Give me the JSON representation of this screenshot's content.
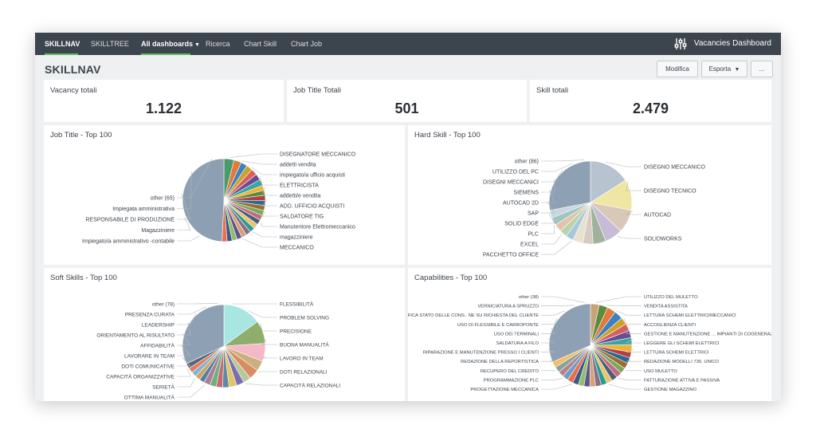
{
  "nav": {
    "items": [
      {
        "label": "SKILLNAV",
        "bold": true,
        "active": true
      },
      {
        "label": "SKILLTREE",
        "bold": false,
        "active": false
      },
      {
        "label": "All dashboards",
        "bold": true,
        "active": true,
        "caret": true
      },
      {
        "label": "Ricerca",
        "bold": false,
        "active": false
      },
      {
        "label": "Chart Skill",
        "bold": false,
        "active": false
      },
      {
        "label": "Chart Job",
        "bold": false,
        "active": false
      }
    ],
    "dashboard_title": "Vacancies Dashboard",
    "dashboard_icon": "sliders-icon",
    "accent_color": "#5cc05c",
    "bar_color": "#3c444d"
  },
  "page": {
    "title": "SKILLNAV",
    "buttons": {
      "edit": "Modifica",
      "export": "Esporta",
      "more": "..."
    }
  },
  "stats": [
    {
      "label": "Vacancy totali",
      "value": "1.122"
    },
    {
      "label": "Job Title Totali",
      "value": "501"
    },
    {
      "label": "Skill totali",
      "value": "2.479"
    }
  ],
  "chart_data": [
    {
      "type": "pie",
      "title": "Job Title - Top 100",
      "left_labels": [
        "other (65)",
        "Impiegata amministrativa",
        "RESPONSABILE DI PRODUZIONE",
        "Magazziniere",
        "Impiegato/a amministrativo -contabile"
      ],
      "right_labels": [
        "DISEGNATORE MECCANICO",
        "addetti vendita",
        "impiegato/a ufficio acquisti",
        "ELETTRICISTA",
        "addetti/e vendita",
        "ADD. UFFICIO ACQUISTI",
        "SALDATORE TIG",
        "Manutentore Elettromeccanico",
        "magazziniere",
        "MECCANICO"
      ],
      "slices": [
        {
          "value": 4.0,
          "color": "#4a9a6b"
        },
        {
          "value": 3.0,
          "color": "#e07b39"
        },
        {
          "value": 2.5,
          "color": "#3b7fc4"
        },
        {
          "value": 2.5,
          "color": "#c9a227"
        },
        {
          "value": 2.5,
          "color": "#d95f5f"
        },
        {
          "value": 2.5,
          "color": "#6a4c93"
        },
        {
          "value": 2.5,
          "color": "#3aa6a0"
        },
        {
          "value": 2.0,
          "color": "#f2b134"
        },
        {
          "value": 2.0,
          "color": "#5b8c3e"
        },
        {
          "value": 2.0,
          "color": "#b0413e"
        },
        {
          "value": 2.0,
          "color": "#2f6690"
        },
        {
          "value": 2.0,
          "color": "#9c6b30"
        },
        {
          "value": 2.0,
          "color": "#7aa95c"
        },
        {
          "value": 2.0,
          "color": "#c06c84"
        },
        {
          "value": 2.0,
          "color": "#4f5d75"
        },
        {
          "value": 2.0,
          "color": "#e9c46a"
        },
        {
          "value": 2.0,
          "color": "#2a9d8f"
        },
        {
          "value": 2.0,
          "color": "#8e6c8a"
        },
        {
          "value": 2.0,
          "color": "#d4a373"
        },
        {
          "value": 2.0,
          "color": "#5e548e"
        },
        {
          "value": 2.0,
          "color": "#90be6d"
        },
        {
          "value": 2.0,
          "color": "#3d5a80"
        },
        {
          "value": 2.0,
          "color": "#ee6c4d"
        },
        {
          "value": 50.0,
          "color": "#8da0b3"
        }
      ]
    },
    {
      "type": "pie",
      "title": "Hard Skill - Top 100",
      "left_labels": [
        "other (86)",
        "UTILIZZO DEL PC",
        "DISEGNI MECCANICI",
        "SIEMENS",
        "AUTOCAD 2D",
        "SAP",
        "SOLID EDGE",
        "PLC",
        "EXCEL",
        "PACCHETTO OFFICE"
      ],
      "right_labels": [
        "DISEGNO MECCANICO",
        "DISEGNO TECNICO",
        "AUTOCAD",
        "SOLIDWORKS"
      ],
      "slices": [
        {
          "value": 16,
          "color": "#b7c4cf"
        },
        {
          "value": 12,
          "color": "#efe6a4"
        },
        {
          "value": 9,
          "color": "#d8c8b8"
        },
        {
          "value": 7,
          "color": "#c7bcd6"
        },
        {
          "value": 5,
          "color": "#9fb39a"
        },
        {
          "value": 4,
          "color": "#d6ccc2"
        },
        {
          "value": 4,
          "color": "#e8e0d0"
        },
        {
          "value": 3,
          "color": "#a6c8d8"
        },
        {
          "value": 3,
          "color": "#b9d3b0"
        },
        {
          "value": 3,
          "color": "#e3c4a8"
        },
        {
          "value": 3,
          "color": "#9ec5c0"
        },
        {
          "value": 3,
          "color": "#c8d6e0"
        },
        {
          "value": 28,
          "color": "#8ea1b4"
        }
      ]
    },
    {
      "type": "pie",
      "title": "Soft Skills - Top 100",
      "left_labels": [
        "other (78)",
        "PRESENZA CURATA",
        "LEADERSHIP",
        "ORIENTAMENTO AL RISULTATO",
        "AFFIDABILITÀ",
        "LAVORARE IN TEAM",
        "DOTI COMUNICATIVE",
        "CAPACITÀ ORGANIZZATIVE",
        "SERIETÀ",
        "OTTIMA MANUALITÀ"
      ],
      "right_labels": [
        "FLESSIBILITÀ",
        "PROBLEM SOLVING",
        "PRECISIONE",
        "BUONA MANUALITÀ",
        "LAVORO IN TEAM",
        "DOTI RELAZIONALI",
        "CAPACITÀ RELAZIONALI"
      ],
      "slices": [
        {
          "value": 15,
          "color": "#a8e6e2"
        },
        {
          "value": 9,
          "color": "#8fae6b"
        },
        {
          "value": 7,
          "color": "#f4b8c8"
        },
        {
          "value": 4,
          "color": "#c9b27a"
        },
        {
          "value": 4,
          "color": "#d98c5f"
        },
        {
          "value": 3,
          "color": "#b5c99a"
        },
        {
          "value": 3,
          "color": "#7c6fb0"
        },
        {
          "value": 3,
          "color": "#e3c46b"
        },
        {
          "value": 2.5,
          "color": "#5d8aa8"
        },
        {
          "value": 2.5,
          "color": "#c46b6b"
        },
        {
          "value": 2.5,
          "color": "#6fb07c"
        },
        {
          "value": 2.5,
          "color": "#b07c9e"
        },
        {
          "value": 2,
          "color": "#4e7fa3"
        },
        {
          "value": 2,
          "color": "#d4a25a"
        },
        {
          "value": 2,
          "color": "#7fb3d5"
        },
        {
          "value": 2,
          "color": "#e27d60"
        },
        {
          "value": 2,
          "color": "#5e6472"
        },
        {
          "value": 32,
          "color": "#8ea1b4"
        }
      ]
    },
    {
      "type": "pie",
      "title": "Capabilities - Top 100",
      "left_labels": [
        "other (38)",
        "VERNICIATURA A SPRUZZO",
        "VERIFICA STATO DELLE CONS.. NE SU RICHIESTA DEL CLIENTE",
        "USO DI FLESSIBILE E CARROPONTE",
        "USO DEI TERMINALI",
        "SALDATURA A FILO",
        "RIPARAZIONE E MANUTENZIONE PRESSO I CLIENTI",
        "REDAZIONE DELLA REPORTISTICA",
        "RECUPERO DEL CREDITO",
        "PROGRAMMAZIONE PLC",
        "PROGETTAZIONE MECCANICA"
      ],
      "right_labels": [
        "UTILIZZO DEL MULETTO",
        "VENDITA ASSISTITA",
        "LETTURA SCHEMI ELETTRICI/MECCANICI",
        "ACCOGLIENZA CLIENTI",
        "GESTIONE E MANUTENZIONE ... IMPIANTI DI COGENERAZIONE",
        "LEGGERE GLI SCHEMI ELETTRICI",
        "LETTURA SCHEMI ELETTRICI",
        "REDAZIONE MODELLI 730, UNICO",
        "USO MULETTO",
        "FATTURAZIONE ATTIVA E PASSIVA",
        "GESTIONE MAGAZZINO"
      ],
      "slices": [
        {
          "value": 3,
          "color": "#c9a27a"
        },
        {
          "value": 3,
          "color": "#5b8c3e"
        },
        {
          "value": 3,
          "color": "#e07b39"
        },
        {
          "value": 3,
          "color": "#3b7fc4"
        },
        {
          "value": 2.5,
          "color": "#c9a227"
        },
        {
          "value": 2.5,
          "color": "#d95f5f"
        },
        {
          "value": 2.5,
          "color": "#6a4c93"
        },
        {
          "value": 2.5,
          "color": "#3aa6a0"
        },
        {
          "value": 2.5,
          "color": "#f2b134"
        },
        {
          "value": 2,
          "color": "#b0413e"
        },
        {
          "value": 2,
          "color": "#2f6690"
        },
        {
          "value": 2,
          "color": "#9c6b30"
        },
        {
          "value": 2,
          "color": "#7aa95c"
        },
        {
          "value": 2,
          "color": "#c06c84"
        },
        {
          "value": 2,
          "color": "#4f5d75"
        },
        {
          "value": 2,
          "color": "#e9c46a"
        },
        {
          "value": 2,
          "color": "#2a9d8f"
        },
        {
          "value": 2,
          "color": "#8e6c8a"
        },
        {
          "value": 2,
          "color": "#d4a373"
        },
        {
          "value": 2,
          "color": "#5e548e"
        },
        {
          "value": 2,
          "color": "#90be6d"
        },
        {
          "value": 2,
          "color": "#3d5a80"
        },
        {
          "value": 2,
          "color": "#ee6c4d"
        },
        {
          "value": 2,
          "color": "#6d9dc5"
        },
        {
          "value": 2,
          "color": "#b5838d"
        },
        {
          "value": 2,
          "color": "#84a59d"
        },
        {
          "value": 2,
          "color": "#f6bd60"
        },
        {
          "value": 28,
          "color": "#8ea1b4"
        }
      ]
    }
  ]
}
